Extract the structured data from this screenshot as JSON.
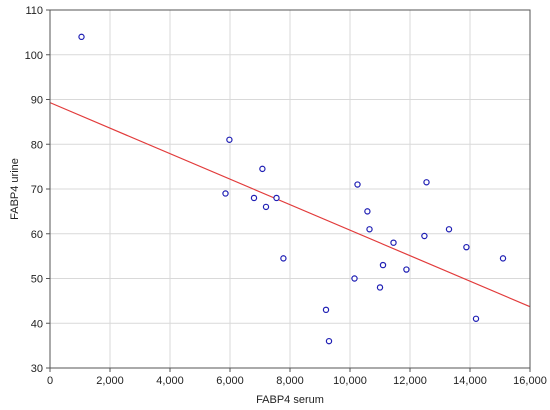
{
  "chart_data": {
    "type": "scatter",
    "xlabel": "FABP4 serum",
    "ylabel": "FABP4 urine",
    "xlim": [
      0,
      16000
    ],
    "ylim": [
      30,
      110
    ],
    "x_ticks": [
      0,
      2000,
      4000,
      6000,
      8000,
      10000,
      12000,
      14000,
      16000
    ],
    "x_tick_labels": [
      "0",
      "2,000",
      "4,000",
      "6,000",
      "8,000",
      "10,000",
      "12,000",
      "14,000",
      "16,000"
    ],
    "y_ticks": [
      30,
      40,
      50,
      60,
      70,
      80,
      90,
      100,
      110
    ],
    "y_tick_labels": [
      "30",
      "40",
      "50",
      "60",
      "70",
      "80",
      "90",
      "100",
      "110"
    ],
    "grid": true,
    "series": [
      {
        "points": [
          [
            1050,
            104
          ],
          [
            5850,
            69
          ],
          [
            5980,
            81
          ],
          [
            6800,
            68
          ],
          [
            7080,
            74.5
          ],
          [
            7200,
            66
          ],
          [
            7550,
            68
          ],
          [
            7780,
            54.5
          ],
          [
            9200,
            43
          ],
          [
            9300,
            36
          ],
          [
            10150,
            50
          ],
          [
            10250,
            71
          ],
          [
            10580,
            65
          ],
          [
            10650,
            61
          ],
          [
            11000,
            48
          ],
          [
            11100,
            53
          ],
          [
            11450,
            58
          ],
          [
            11880,
            52
          ],
          [
            12480,
            59.5
          ],
          [
            12550,
            71.5
          ],
          [
            13300,
            61
          ],
          [
            13880,
            57
          ],
          [
            14200,
            41
          ],
          [
            15100,
            54.5
          ]
        ],
        "color": "#1f1fb4"
      }
    ],
    "trendline": {
      "x": [
        0,
        16000
      ],
      "y": [
        89.3,
        43.7
      ],
      "color": "#e23b3b"
    }
  }
}
